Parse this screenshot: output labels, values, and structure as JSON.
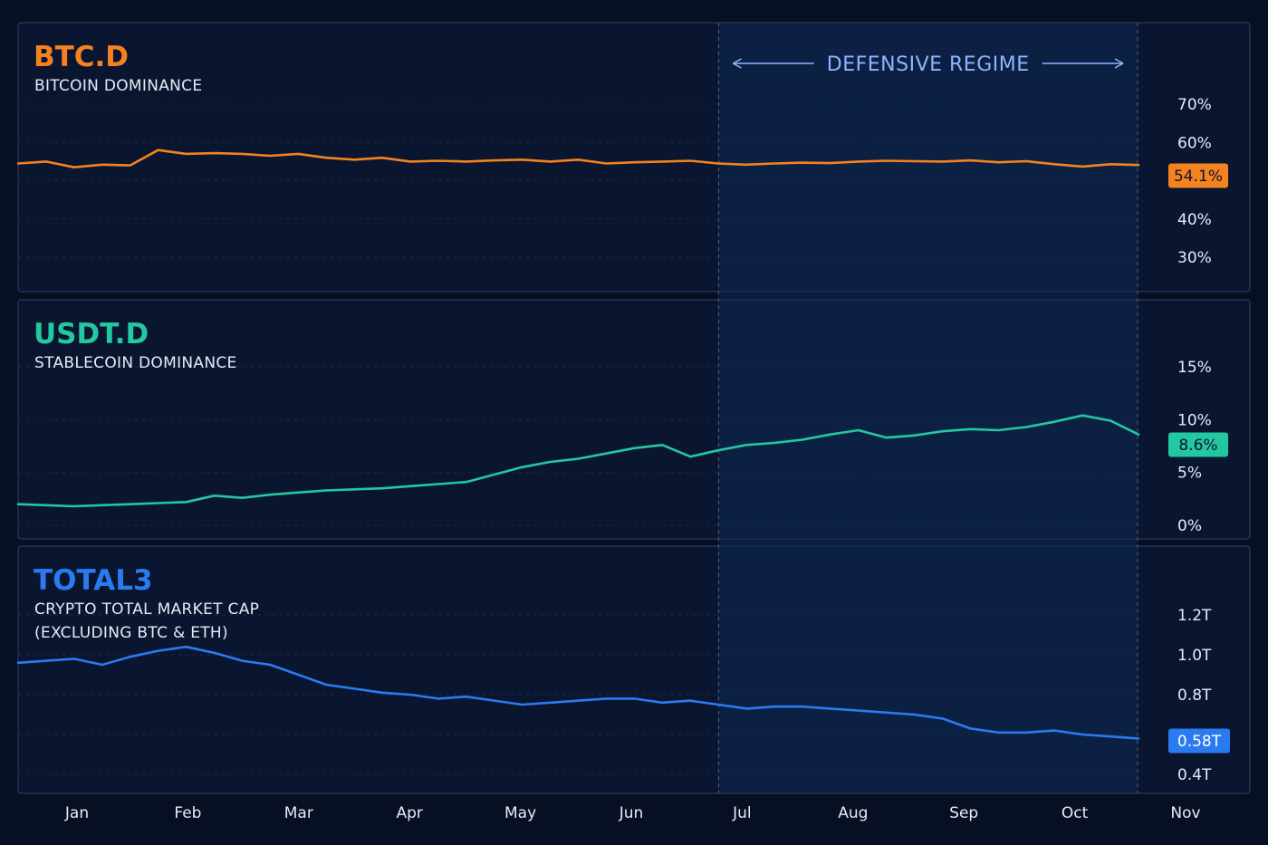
{
  "colors": {
    "background": "#070f22",
    "panel": "#0a1530",
    "panel_border": "#2a3a5c",
    "grid": "#1b2a4a",
    "regime_fill": "#0f2a55",
    "regime_line": "#4a5f88",
    "regime_text": "#8fb4ff",
    "tick_text": "#e6ebf5",
    "btc": "#f5821f",
    "usdt": "#23c8a0",
    "total3": "#2b7bf0"
  },
  "x_axis": {
    "labels": [
      "Jan",
      "Feb",
      "Mar",
      "Apr",
      "May",
      "Jun",
      "Jul",
      "Aug",
      "Sep",
      "Oct",
      "Nov"
    ]
  },
  "regime": {
    "label": "DEFENSIVE REGIME",
    "start_month": "Jul",
    "end_month": "Nov"
  },
  "chart_data": [
    {
      "type": "line",
      "id": "btc",
      "title": "BTC.D",
      "subtitle": "BITCOIN DOMINANCE",
      "ylim": [
        25,
        75
      ],
      "yticks": [
        "70%",
        "60%",
        "50%",
        "40%",
        "30%"
      ],
      "badge": "54.1%",
      "grid": true,
      "series": [
        {
          "name": "BTC.D",
          "x": [
            0,
            0.25,
            0.5,
            0.75,
            1.0,
            1.25,
            1.5,
            1.75,
            2.0,
            2.25,
            2.5,
            2.75,
            3.0,
            3.25,
            3.5,
            3.75,
            4.0,
            4.25,
            4.5,
            4.75,
            5.0,
            5.25,
            5.5,
            5.75,
            6.0,
            6.25,
            6.5,
            6.75,
            7.0,
            7.25,
            7.5,
            7.75,
            8.0,
            8.25,
            8.5,
            8.75,
            9.0,
            9.25,
            9.5,
            9.75,
            10.0
          ],
          "y": [
            54.5,
            55.0,
            53.5,
            54.2,
            54.0,
            58.0,
            57.0,
            57.2,
            57.0,
            56.5,
            57.0,
            56.0,
            55.5,
            56.0,
            55.0,
            55.2,
            55.0,
            55.3,
            55.5,
            55.0,
            55.5,
            54.5,
            54.8,
            55.0,
            55.2,
            54.5,
            54.2,
            54.5,
            54.7,
            54.6,
            55.0,
            55.2,
            55.1,
            55.0,
            55.3,
            54.8,
            55.1,
            54.3,
            53.7,
            54.3,
            54.1
          ]
        }
      ]
    },
    {
      "type": "line",
      "id": "usdt",
      "title": "USDT.D",
      "subtitle": "STABLECOIN DOMINANCE",
      "ylim": [
        0,
        16
      ],
      "yticks": [
        "15%",
        "10%",
        "5%",
        "0%"
      ],
      "badge": "8.6%",
      "grid": true,
      "series": [
        {
          "name": "USDT.D",
          "x": [
            0,
            0.25,
            0.5,
            0.75,
            1.0,
            1.25,
            1.5,
            1.75,
            2.0,
            2.25,
            2.5,
            2.75,
            3.0,
            3.25,
            3.5,
            3.75,
            4.0,
            4.25,
            4.5,
            4.75,
            5.0,
            5.25,
            5.5,
            5.75,
            6.0,
            6.25,
            6.5,
            6.75,
            7.0,
            7.25,
            7.5,
            7.75,
            8.0,
            8.25,
            8.5,
            8.75,
            9.0,
            9.25,
            9.5,
            9.75,
            10.0
          ],
          "y": [
            2.0,
            1.9,
            1.8,
            1.9,
            2.0,
            2.1,
            2.2,
            2.8,
            2.6,
            2.9,
            3.1,
            3.3,
            3.4,
            3.5,
            3.7,
            3.9,
            4.1,
            4.8,
            5.5,
            6.0,
            6.3,
            6.8,
            7.3,
            7.6,
            6.5,
            7.1,
            7.6,
            7.8,
            8.1,
            8.6,
            9.0,
            8.3,
            8.5,
            8.9,
            9.1,
            9.0,
            9.3,
            9.8,
            10.4,
            9.9,
            8.6
          ]
        }
      ]
    },
    {
      "type": "line",
      "id": "total3",
      "title": "TOTAL3",
      "subtitle": "CRYPTO TOTAL MARKET CAP",
      "subtitle_line2": "(EXCLUDING BTC & ETH)",
      "ylim": [
        0.35,
        1.35
      ],
      "yticks": [
        "1.2T",
        "1.0T",
        "0.8T",
        "0.6T",
        "0.4T"
      ],
      "badge": "0.58T",
      "grid": true,
      "series": [
        {
          "name": "TOTAL3",
          "x": [
            0,
            0.25,
            0.5,
            0.75,
            1.0,
            1.25,
            1.5,
            1.75,
            2.0,
            2.25,
            2.5,
            2.75,
            3.0,
            3.25,
            3.5,
            3.75,
            4.0,
            4.25,
            4.5,
            4.75,
            5.0,
            5.25,
            5.5,
            5.75,
            6.0,
            6.25,
            6.5,
            6.75,
            7.0,
            7.25,
            7.5,
            7.75,
            8.0,
            8.25,
            8.5,
            8.75,
            9.0,
            9.25,
            9.5,
            9.75,
            10.0
          ],
          "y": [
            0.96,
            0.97,
            0.98,
            0.95,
            0.99,
            1.02,
            1.04,
            1.01,
            0.97,
            0.95,
            0.9,
            0.85,
            0.83,
            0.81,
            0.8,
            0.78,
            0.79,
            0.77,
            0.75,
            0.76,
            0.77,
            0.78,
            0.78,
            0.76,
            0.77,
            0.75,
            0.73,
            0.74,
            0.74,
            0.73,
            0.72,
            0.71,
            0.7,
            0.68,
            0.63,
            0.61,
            0.61,
            0.62,
            0.6,
            0.59,
            0.58
          ]
        }
      ]
    }
  ]
}
